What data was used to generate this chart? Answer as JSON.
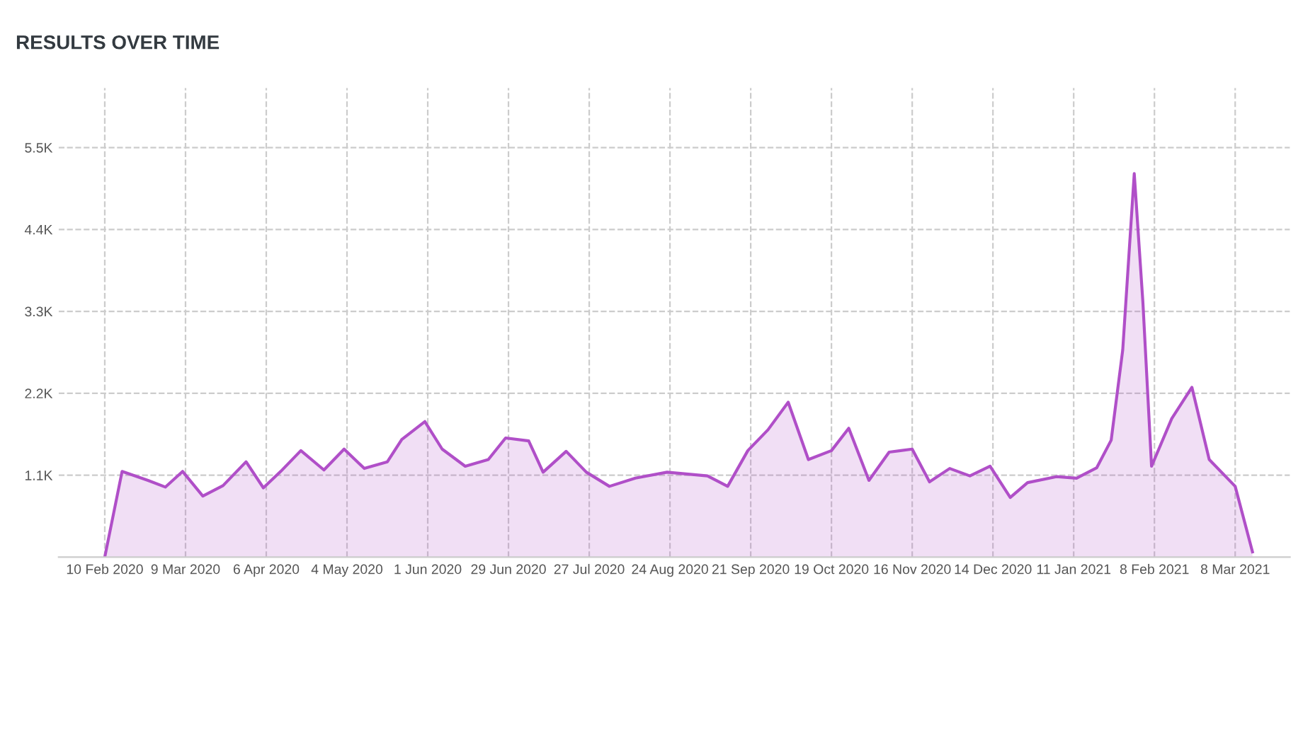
{
  "chart_data": {
    "type": "area",
    "title": "RESULTS OVER TIME",
    "x": [
      "2020-02-10",
      "2020-02-16",
      "2020-02-25",
      "2020-03-02",
      "2020-03-08",
      "2020-03-15",
      "2020-03-22",
      "2020-03-30",
      "2020-04-05",
      "2020-04-11",
      "2020-04-18",
      "2020-04-26",
      "2020-05-03",
      "2020-05-10",
      "2020-05-18",
      "2020-05-23",
      "2020-05-31",
      "2020-06-06",
      "2020-06-14",
      "2020-06-22",
      "2020-06-28",
      "2020-07-06",
      "2020-07-11",
      "2020-07-19",
      "2020-07-26",
      "2020-08-03",
      "2020-08-12",
      "2020-08-23",
      "2020-09-06",
      "2020-09-13",
      "2020-09-20",
      "2020-09-27",
      "2020-10-04",
      "2020-10-11",
      "2020-10-19",
      "2020-10-25",
      "2020-11-01",
      "2020-11-08",
      "2020-11-16",
      "2020-11-22",
      "2020-11-29",
      "2020-12-06",
      "2020-12-13",
      "2020-12-20",
      "2020-12-26",
      "2021-01-05",
      "2021-01-12",
      "2021-01-19",
      "2021-01-24",
      "2021-01-28",
      "2021-02-01",
      "2021-02-04",
      "2021-02-07",
      "2021-02-14",
      "2021-02-21",
      "2021-02-27",
      "2021-03-08",
      "2021-03-14"
    ],
    "series": [
      {
        "color": "#b04fc8",
        "values": [
          0,
          1150,
          1030,
          940,
          1150,
          820,
          960,
          1280,
          930,
          1150,
          1430,
          1170,
          1450,
          1190,
          1280,
          1580,
          1820,
          1450,
          1220,
          1310,
          1600,
          1560,
          1140,
          1420,
          1140,
          950,
          1060,
          1140,
          1090,
          950,
          1430,
          1710,
          2080,
          1310,
          1430,
          1730,
          1030,
          1410,
          1450,
          1010,
          1190,
          1090,
          1220,
          800,
          1000,
          1080,
          1060,
          1200,
          1570,
          2780,
          5150,
          3420,
          1220,
          1860,
          2280,
          1310,
          950,
          70
        ]
      }
    ],
    "xlim": [
      "2020-01-25",
      "2021-03-27"
    ],
    "xticks": [
      {
        "value": "2020-02-10",
        "label": "10 Feb 2020"
      },
      {
        "value": "2020-03-09",
        "label": "9 Mar 2020"
      },
      {
        "value": "2020-04-06",
        "label": "6 Apr 2020"
      },
      {
        "value": "2020-05-04",
        "label": "4 May 2020"
      },
      {
        "value": "2020-06-01",
        "label": "1 Jun 2020"
      },
      {
        "value": "2020-06-29",
        "label": "29 Jun 2020"
      },
      {
        "value": "2020-07-27",
        "label": "27 Jul 2020"
      },
      {
        "value": "2020-08-24",
        "label": "24 Aug 2020"
      },
      {
        "value": "2020-09-21",
        "label": "21 Sep 2020"
      },
      {
        "value": "2020-10-19",
        "label": "19 Oct 2020"
      },
      {
        "value": "2020-11-16",
        "label": "16 Nov 2020"
      },
      {
        "value": "2020-12-14",
        "label": "14 Dec 2020"
      },
      {
        "value": "2021-01-11",
        "label": "11 Jan 2021"
      },
      {
        "value": "2021-02-08",
        "label": "8 Feb 2021"
      },
      {
        "value": "2021-03-08",
        "label": "8 Mar 2021"
      }
    ],
    "ylim": [
      0,
      6300
    ],
    "yticks": [
      {
        "value": 1100,
        "label": "1.1K"
      },
      {
        "value": 2200,
        "label": "2.2K"
      },
      {
        "value": 3300,
        "label": "3.3K"
      },
      {
        "value": 4400,
        "label": "4.4K"
      },
      {
        "value": 5500,
        "label": "5.5K"
      }
    ],
    "grid": true,
    "legend": false,
    "marker": "none",
    "line_style": "solid"
  }
}
